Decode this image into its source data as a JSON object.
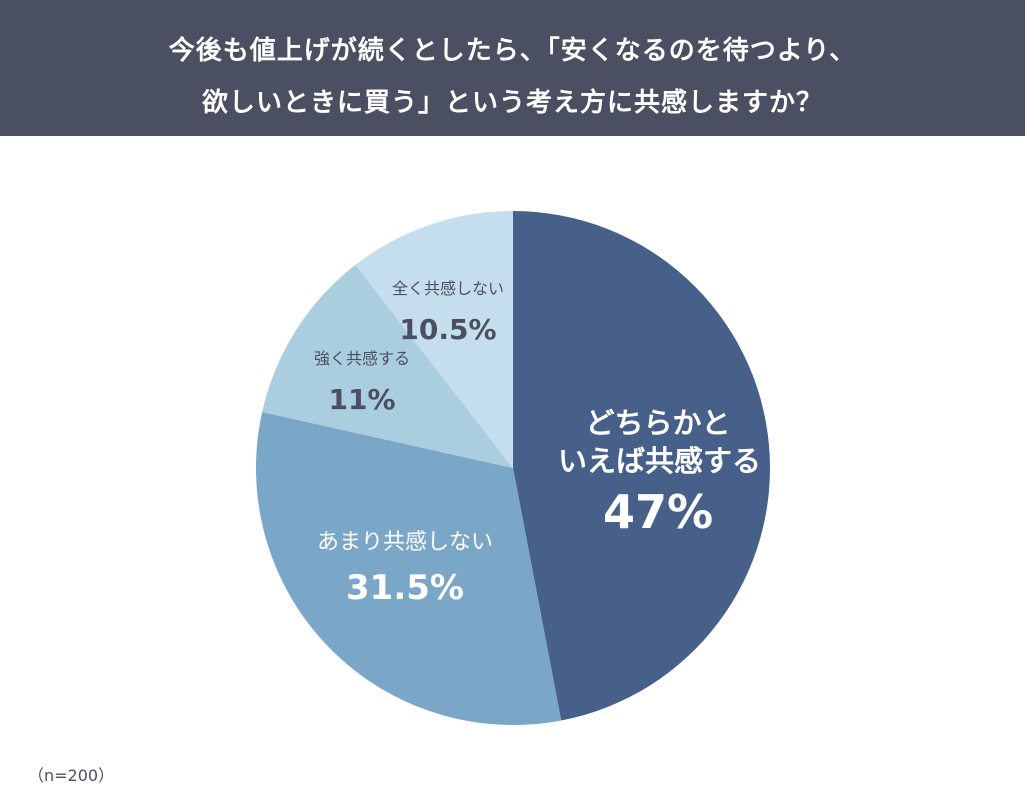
{
  "header": {
    "title_line1": "今後も値上げが続くとしたら、「安くなるのを待つより、",
    "title_line2": "欲しいときに買う」という考え方に共感しますか？",
    "background_color": "#4a5061"
  },
  "labels": {
    "s1_line1": "どちらかと",
    "s1_line2": "いえば共感する",
    "s1_pct": "47%",
    "s2_cat": "あまり共感しない",
    "s2_pct": "31.5%",
    "s3_cat": "強く共感する",
    "s3_pct": "11%",
    "s4_cat": "全く共感しない",
    "s4_pct": "10.5%"
  },
  "footer": {
    "sample_size": "（n=200）"
  },
  "chart_data": {
    "type": "pie",
    "title": "今後も値上げが続くとしたら、「安くなるのを待つより、欲しいときに買う」という考え方に共感しますか？",
    "categories": [
      "どちらかといえば共感する",
      "あまり共感しない",
      "強く共感する",
      "全く共感しない"
    ],
    "values": [
      47,
      31.5,
      11,
      10.5
    ],
    "unit": "%",
    "colors": [
      "#46608a",
      "#7aa7c8",
      "#abcde0",
      "#c5deed"
    ],
    "start_angle": "12 o'clock",
    "direction": "clockwise",
    "annotations": [
      "（n=200）"
    ],
    "legend": "none (labels inside slices)"
  }
}
